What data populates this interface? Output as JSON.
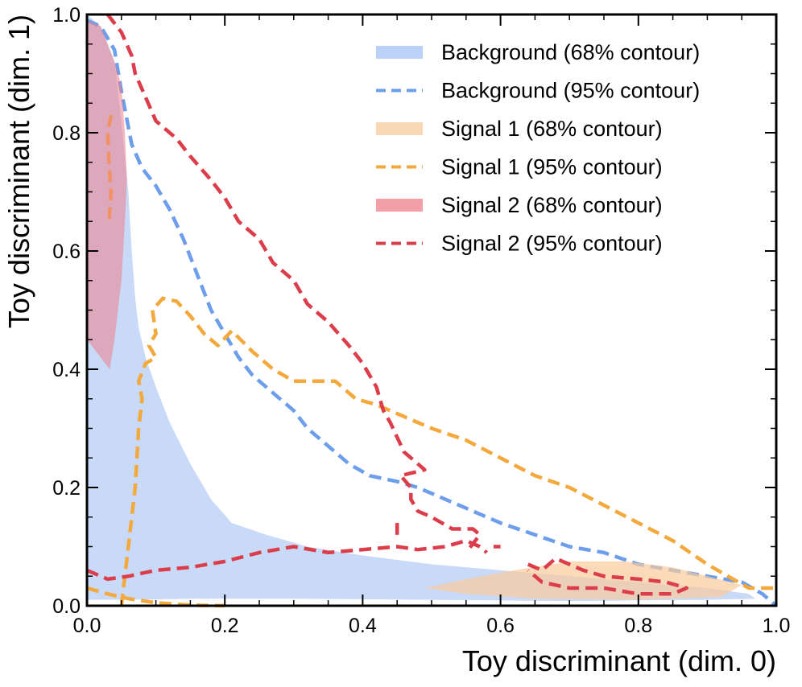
{
  "chart_data": {
    "type": "contour",
    "xlabel": "Toy discriminant (dim. 0)",
    "ylabel": "Toy discriminant (dim. 1)",
    "xlim": [
      0.0,
      1.0
    ],
    "ylim": [
      0.0,
      1.0
    ],
    "xticks": [
      0.0,
      0.2,
      0.4,
      0.6,
      0.8,
      1.0
    ],
    "yticks": [
      0.0,
      0.2,
      0.4,
      0.6,
      0.8,
      1.0
    ],
    "xtick_labels": [
      "0.0",
      "0.2",
      "0.4",
      "0.6",
      "0.8",
      "1.0"
    ],
    "ytick_labels": [
      "0.0",
      "0.2",
      "0.4",
      "0.6",
      "0.8",
      "1.0"
    ],
    "legend_position": "top-right",
    "colors": {
      "background_fill": "#a4c2f4",
      "background_line": "#6d9eeb",
      "signal1_fill": "#f9cb9c",
      "signal1_line": "#f4a93c",
      "signal2_fill": "#ef7f89",
      "signal2_line": "#dc3d4b"
    },
    "series": [
      {
        "name": "Background (68% contour)",
        "style": "fill",
        "color_key": "background_fill",
        "opacity": 0.6,
        "contours": [
          [
            [
              0,
              1.0
            ],
            [
              0.02,
              0.98
            ],
            [
              0.04,
              0.92
            ],
            [
              0.05,
              0.82
            ],
            [
              0.06,
              0.7
            ],
            [
              0.065,
              0.6
            ],
            [
              0.07,
              0.52
            ],
            [
              0.075,
              0.47
            ],
            [
              0.085,
              0.42
            ],
            [
              0.1,
              0.37
            ],
            [
              0.12,
              0.31
            ],
            [
              0.15,
              0.24
            ],
            [
              0.18,
              0.18
            ],
            [
              0.21,
              0.14
            ],
            [
              0.26,
              0.12
            ],
            [
              0.32,
              0.1
            ],
            [
              0.4,
              0.085
            ],
            [
              0.5,
              0.07
            ],
            [
              0.6,
              0.06
            ],
            [
              0.7,
              0.05
            ],
            [
              0.8,
              0.04
            ],
            [
              0.9,
              0.03
            ],
            [
              0.96,
              0.02
            ],
            [
              0.97,
              0.012
            ],
            [
              0.9,
              0.01
            ],
            [
              0.7,
              0.008
            ],
            [
              0.5,
              0.01
            ],
            [
              0.3,
              0.012
            ],
            [
              0.15,
              0.012
            ],
            [
              0.06,
              0.01
            ],
            [
              0.02,
              0.01
            ],
            [
              0,
              0.01
            ]
          ]
        ]
      },
      {
        "name": "Background (95% contour)",
        "style": "dashed",
        "color_key": "background_line",
        "contours": [
          [
            [
              0,
              0.99
            ],
            [
              0.02,
              0.98
            ],
            [
              0.04,
              0.94
            ],
            [
              0.05,
              0.87
            ],
            [
              0.065,
              0.78
            ],
            [
              0.08,
              0.74
            ],
            [
              0.1,
              0.71
            ],
            [
              0.12,
              0.67
            ],
            [
              0.14,
              0.62
            ],
            [
              0.16,
              0.56
            ],
            [
              0.18,
              0.5
            ],
            [
              0.2,
              0.46
            ],
            [
              0.22,
              0.42
            ],
            [
              0.24,
              0.39
            ],
            [
              0.27,
              0.36
            ],
            [
              0.3,
              0.33
            ],
            [
              0.32,
              0.3
            ],
            [
              0.35,
              0.27
            ],
            [
              0.38,
              0.24
            ],
            [
              0.41,
              0.22
            ],
            [
              0.45,
              0.21
            ],
            [
              0.48,
              0.2
            ],
            [
              0.52,
              0.18
            ],
            [
              0.55,
              0.165
            ],
            [
              0.6,
              0.14
            ],
            [
              0.65,
              0.12
            ],
            [
              0.7,
              0.1
            ],
            [
              0.75,
              0.09
            ],
            [
              0.8,
              0.07
            ],
            [
              0.85,
              0.06
            ],
            [
              0.9,
              0.05
            ],
            [
              0.95,
              0.04
            ],
            [
              0.98,
              0.02
            ],
            [
              1.0,
              0.0
            ]
          ]
        ]
      },
      {
        "name": "Signal 1 (68% contour)",
        "style": "fill",
        "color_key": "signal1_fill",
        "opacity": 0.7,
        "contours": [
          [
            [
              0.49,
              0.03
            ],
            [
              0.55,
              0.045
            ],
            [
              0.62,
              0.06
            ],
            [
              0.7,
              0.075
            ],
            [
              0.78,
              0.075
            ],
            [
              0.85,
              0.065
            ],
            [
              0.9,
              0.05
            ],
            [
              0.95,
              0.035
            ],
            [
              0.92,
              0.015
            ],
            [
              0.8,
              0.01
            ],
            [
              0.65,
              0.012
            ],
            [
              0.55,
              0.02
            ]
          ]
        ]
      },
      {
        "name": "Signal 1 (95% contour)",
        "style": "dashed",
        "color_key": "signal1_line",
        "contours": [
          [
            [
              0.0,
              0.03
            ],
            [
              0.03,
              0.02
            ],
            [
              0.06,
              0.012
            ],
            [
              0.1,
              0.005
            ],
            [
              0.15,
              0.001
            ],
            [
              0.2,
              0.0
            ]
          ],
          [
            [
              0.05,
              0.0
            ],
            [
              0.055,
              0.05
            ],
            [
              0.06,
              0.1
            ],
            [
              0.07,
              0.2
            ],
            [
              0.075,
              0.3
            ],
            [
              0.08,
              0.35
            ],
            [
              0.075,
              0.38
            ],
            [
              0.085,
              0.41
            ],
            [
              0.1,
              0.42
            ],
            [
              0.09,
              0.44
            ],
            [
              0.1,
              0.46
            ],
            [
              0.095,
              0.5
            ],
            [
              0.11,
              0.52
            ],
            [
              0.13,
              0.515
            ],
            [
              0.15,
              0.49
            ],
            [
              0.17,
              0.46
            ],
            [
              0.19,
              0.44
            ],
            [
              0.21,
              0.465
            ],
            [
              0.24,
              0.43
            ],
            [
              0.27,
              0.4
            ],
            [
              0.3,
              0.38
            ],
            [
              0.33,
              0.38
            ],
            [
              0.36,
              0.38
            ],
            [
              0.39,
              0.35
            ],
            [
              0.42,
              0.34
            ],
            [
              0.46,
              0.32
            ],
            [
              0.5,
              0.3
            ],
            [
              0.55,
              0.28
            ],
            [
              0.6,
              0.25
            ],
            [
              0.65,
              0.22
            ],
            [
              0.7,
              0.2
            ],
            [
              0.75,
              0.17
            ],
            [
              0.8,
              0.14
            ],
            [
              0.85,
              0.11
            ],
            [
              0.9,
              0.07
            ],
            [
              0.93,
              0.05
            ],
            [
              0.96,
              0.03
            ],
            [
              1.0,
              0.03
            ]
          ],
          [
            [
              0.035,
              0.83
            ],
            [
              0.03,
              0.8
            ],
            [
              0.032,
              0.75
            ],
            [
              0.035,
              0.7
            ],
            [
              0.032,
              0.65
            ]
          ]
        ]
      },
      {
        "name": "Signal 2 (68% contour)",
        "style": "fill",
        "color_key": "signal2_fill",
        "opacity": 0.55,
        "contours": [
          [
            [
              0.0,
              0.99
            ],
            [
              0.02,
              0.98
            ],
            [
              0.04,
              0.92
            ],
            [
              0.05,
              0.88
            ],
            [
              0.055,
              0.8
            ],
            [
              0.058,
              0.72
            ],
            [
              0.055,
              0.65
            ],
            [
              0.05,
              0.55
            ],
            [
              0.04,
              0.45
            ],
            [
              0.033,
              0.4
            ],
            [
              0.02,
              0.42
            ],
            [
              0.0,
              0.45
            ]
          ]
        ]
      },
      {
        "name": "Signal 2 (95% contour)",
        "style": "dashed",
        "color_key": "signal2_line",
        "contours": [
          [
            [
              0.03,
              1.0
            ],
            [
              0.05,
              0.97
            ],
            [
              0.065,
              0.93
            ],
            [
              0.07,
              0.9
            ],
            [
              0.085,
              0.86
            ],
            [
              0.1,
              0.82
            ],
            [
              0.13,
              0.79
            ],
            [
              0.15,
              0.76
            ],
            [
              0.18,
              0.72
            ],
            [
              0.2,
              0.69
            ],
            [
              0.22,
              0.65
            ],
            [
              0.25,
              0.62
            ],
            [
              0.27,
              0.58
            ],
            [
              0.3,
              0.55
            ],
            [
              0.32,
              0.51
            ],
            [
              0.35,
              0.48
            ],
            [
              0.38,
              0.44
            ],
            [
              0.4,
              0.41
            ],
            [
              0.42,
              0.37
            ],
            [
              0.43,
              0.33
            ],
            [
              0.44,
              0.31
            ],
            [
              0.46,
              0.26
            ],
            [
              0.48,
              0.24
            ],
            [
              0.49,
              0.23
            ],
            [
              0.455,
              0.22
            ],
            [
              0.47,
              0.2
            ],
            [
              0.47,
              0.18
            ],
            [
              0.48,
              0.16
            ],
            [
              0.5,
              0.15
            ],
            [
              0.53,
              0.13
            ],
            [
              0.56,
              0.13
            ],
            [
              0.57,
              0.12
            ],
            [
              0.55,
              0.09
            ]
          ],
          [
            [
              0.0,
              0.06
            ],
            [
              0.03,
              0.045
            ],
            [
              0.06,
              0.05
            ],
            [
              0.1,
              0.06
            ],
            [
              0.15,
              0.065
            ],
            [
              0.2,
              0.075
            ],
            [
              0.25,
              0.09
            ],
            [
              0.3,
              0.1
            ],
            [
              0.35,
              0.09
            ],
            [
              0.4,
              0.095
            ],
            [
              0.45,
              0.1
            ],
            [
              0.48,
              0.095
            ],
            [
              0.52,
              0.1
            ],
            [
              0.55,
              0.11
            ],
            [
              0.57,
              0.1
            ],
            [
              0.58,
              0.09
            ]
          ],
          [
            [
              0.45,
              0.14
            ],
            [
              0.45,
              0.12
            ]
          ],
          [
            [
              0.6,
              0.1
            ],
            [
              0.59,
              0.1
            ]
          ],
          [
            [
              0.64,
              0.07
            ],
            [
              0.66,
              0.06
            ],
            [
              0.68,
              0.08
            ],
            [
              0.7,
              0.07
            ],
            [
              0.72,
              0.06
            ],
            [
              0.75,
              0.05
            ],
            [
              0.8,
              0.045
            ],
            [
              0.84,
              0.04
            ],
            [
              0.87,
              0.03
            ],
            [
              0.85,
              0.02
            ],
            [
              0.8,
              0.02
            ],
            [
              0.75,
              0.03
            ],
            [
              0.7,
              0.03
            ],
            [
              0.66,
              0.04
            ],
            [
              0.64,
              0.06
            ]
          ]
        ]
      }
    ],
    "legend": [
      {
        "label": "Background (68% contour)",
        "style": "fill",
        "color_key": "background_fill"
      },
      {
        "label": "Background (95% contour)",
        "style": "dashed",
        "color_key": "background_line"
      },
      {
        "label": "Signal 1 (68% contour)",
        "style": "fill",
        "color_key": "signal1_fill"
      },
      {
        "label": "Signal 1 (95% contour)",
        "style": "dashed",
        "color_key": "signal1_line"
      },
      {
        "label": "Signal 2 (68% contour)",
        "style": "fill",
        "color_key": "signal2_fill"
      },
      {
        "label": "Signal 2 (95% contour)",
        "style": "dashed",
        "color_key": "signal2_line"
      }
    ]
  }
}
